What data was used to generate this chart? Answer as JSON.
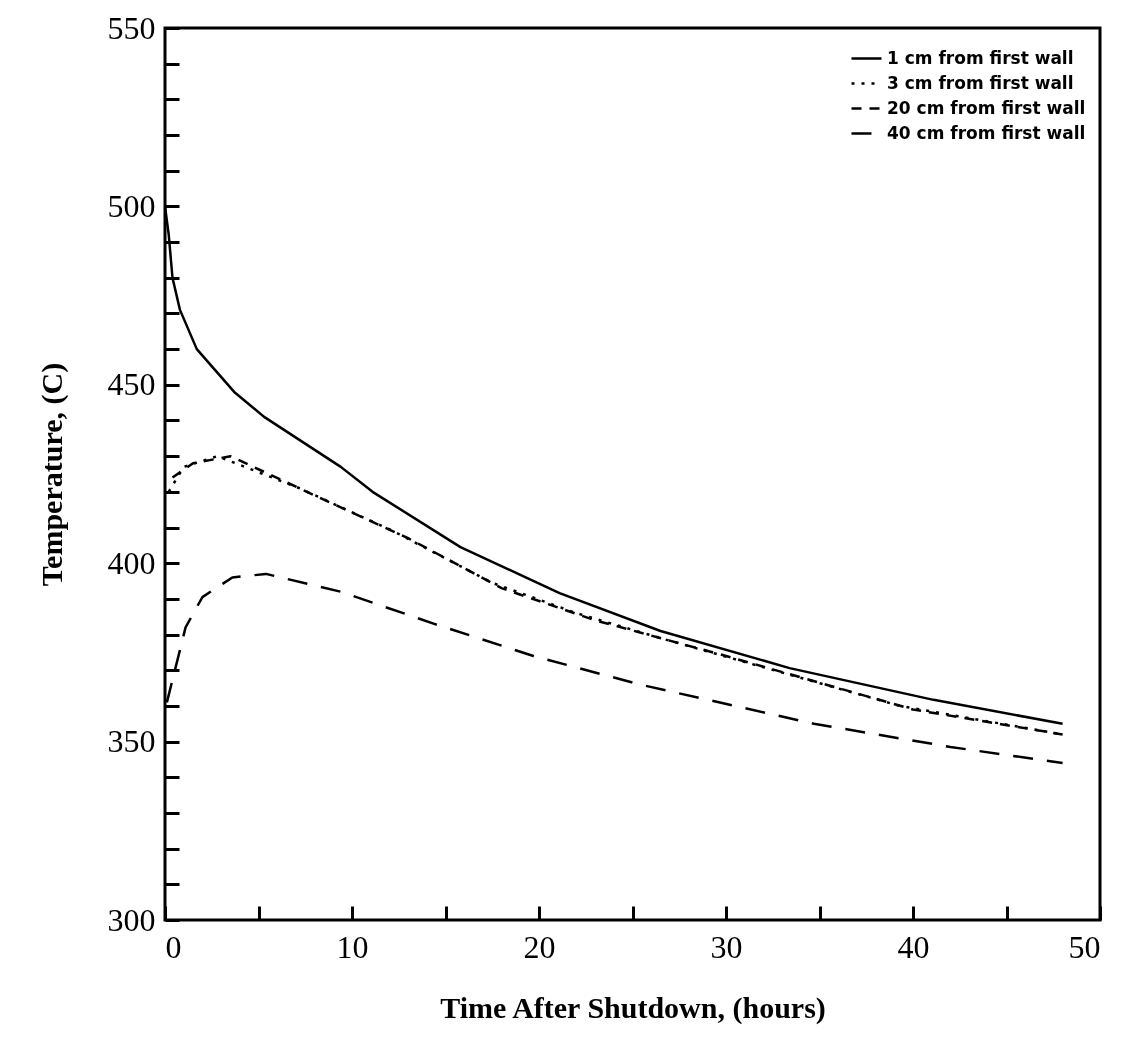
{
  "chart_data": {
    "type": "line",
    "xlabel": "Time After Shutdown, (hours)",
    "ylabel": "Temperature, (C)",
    "xlim": [
      0,
      50
    ],
    "ylim": [
      300,
      550
    ],
    "xticks": [
      0,
      {
        "value": 5,
        "label": null
      },
      10,
      {
        "value": 15,
        "label": null
      },
      20,
      {
        "value": 25,
        "label": null
      },
      30,
      {
        "value": 35,
        "label": null
      },
      40,
      {
        "value": 45,
        "label": null
      },
      50
    ],
    "yticks": [
      300,
      {
        "value": 310,
        "label": null
      },
      {
        "value": 320,
        "label": null
      },
      {
        "value": 330,
        "label": null
      },
      {
        "value": 340,
        "label": null
      },
      350,
      {
        "value": 360,
        "label": null
      },
      {
        "value": 370,
        "label": null
      },
      {
        "value": 380,
        "label": null
      },
      {
        "value": 390,
        "label": null
      },
      400,
      {
        "value": 410,
        "label": null
      },
      {
        "value": 420,
        "label": null
      },
      {
        "value": 430,
        "label": null
      },
      {
        "value": 440,
        "label": null
      },
      450,
      {
        "value": 460,
        "label": null
      },
      {
        "value": 470,
        "label": null
      },
      {
        "value": 480,
        "label": null
      },
      {
        "value": 490,
        "label": null
      },
      500,
      {
        "value": 510,
        "label": null
      },
      {
        "value": 520,
        "label": null
      },
      {
        "value": 530,
        "label": null
      },
      {
        "value": 540,
        "label": null
      },
      550
    ],
    "legend": "top right",
    "grid": false,
    "series": [
      {
        "name": "1 cm from first wall",
        "color": "#000000",
        "line_style": "solid",
        "x": [
          0,
          0.2,
          0.4,
          0.8,
          1.7,
          3.7,
          5.3,
          9.4,
          11.1,
          15.8,
          21.1,
          26.5,
          33.4,
          41.1,
          48
        ],
        "values": [
          500,
          492,
          480,
          471,
          460,
          448,
          441,
          427,
          420,
          404.5,
          391.6,
          381,
          370.6,
          361.7,
          355
        ]
      },
      {
        "name": "3 cm from first wall",
        "color": "#000000",
        "line_style": "dotted",
        "x": [
          0.2,
          1,
          2.8,
          7.2,
          12.2,
          17.5,
          22,
          26.5,
          39.3,
          48
        ],
        "values": [
          420,
          427,
          430,
          421,
          409,
          394.5,
          386,
          379,
          360,
          352
        ]
      },
      {
        "name": "20 cm from first wall",
        "color": "#000000",
        "line_style": "dashed",
        "x": [
          0.4,
          1.5,
          3.5,
          8,
          13,
          18,
          23,
          30,
          40,
          48
        ],
        "values": [
          424,
          428,
          430,
          419,
          407,
          393,
          384,
          374,
          359,
          352
        ]
      },
      {
        "name": "40 cm from first wall",
        "color": "#000000",
        "line_style": "longdash",
        "x": [
          0.1,
          1.1,
          2,
          3.6,
          5.4,
          9.4,
          14.4,
          19.7,
          25.4,
          34.7,
          42,
          48
        ],
        "values": [
          361,
          382,
          390.5,
          396,
          397,
          392,
          383,
          374,
          366,
          355,
          348.5,
          344
        ]
      }
    ]
  }
}
